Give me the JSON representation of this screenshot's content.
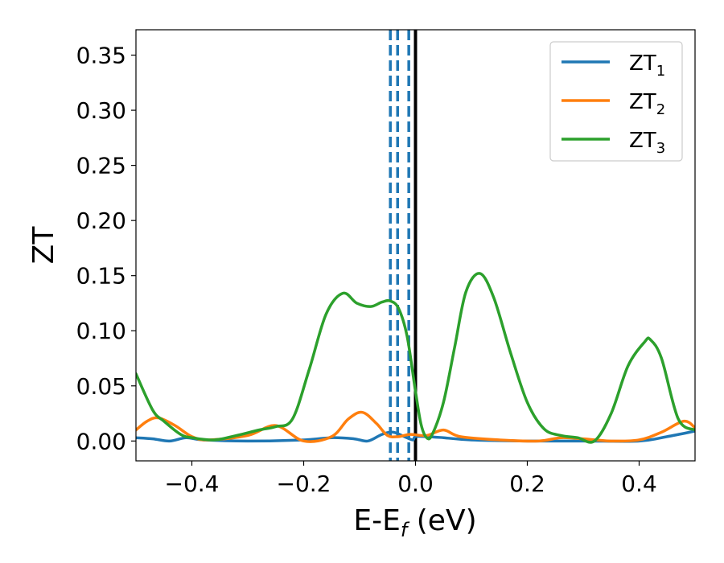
{
  "chart_data": {
    "type": "line",
    "xlabel": "E-E",
    "xlabel_sub": "f",
    "xlabel_unit": " (eV)",
    "ylabel": "ZT",
    "xlim": [
      -0.5,
      0.5
    ],
    "ylim": [
      -0.018,
      0.373
    ],
    "xticks": [
      -0.4,
      -0.2,
      0.0,
      0.2,
      0.4
    ],
    "xtick_labels": [
      "−0.4",
      "−0.2",
      "0.0",
      "0.2",
      "0.4"
    ],
    "yticks": [
      0.0,
      0.05,
      0.1,
      0.15,
      0.2,
      0.25,
      0.3,
      0.35
    ],
    "ytick_labels": [
      "0.00",
      "0.05",
      "0.10",
      "0.15",
      "0.20",
      "0.25",
      "0.30",
      "0.35"
    ],
    "grid": false,
    "legend_position": "top-right",
    "vlines": [
      {
        "x": 0.0,
        "color": "#000000",
        "style": "solid"
      },
      {
        "x": -0.045,
        "color": "#1f77b4",
        "style": "dashed"
      },
      {
        "x": -0.032,
        "color": "#1f77b4",
        "style": "dashed"
      },
      {
        "x": -0.012,
        "color": "#1f77b4",
        "style": "dashed"
      }
    ],
    "series": [
      {
        "name": "ZT",
        "name_sub": "1",
        "color": "#1f77b4",
        "x": [
          -0.5,
          -0.47,
          -0.44,
          -0.41,
          -0.38,
          -0.3,
          -0.2,
          -0.15,
          -0.11,
          -0.085,
          -0.06,
          -0.04,
          -0.02,
          -0.005,
          0.0,
          0.02,
          0.05,
          0.1,
          0.2,
          0.3,
          0.4,
          0.45,
          0.5
        ],
        "y": [
          0.003,
          0.002,
          0.0,
          0.003,
          0.001,
          0.0,
          0.001,
          0.003,
          0.002,
          0.0,
          0.006,
          0.008,
          0.004,
          0.001,
          0.004,
          0.004,
          0.003,
          0.001,
          0.0,
          0.0,
          0.0,
          0.004,
          0.009
        ]
      },
      {
        "name": "ZT",
        "name_sub": "2",
        "color": "#ff7f0e",
        "x": [
          -0.5,
          -0.48,
          -0.46,
          -0.43,
          -0.4,
          -0.37,
          -0.3,
          -0.25,
          -0.2,
          -0.15,
          -0.12,
          -0.095,
          -0.07,
          -0.05,
          -0.03,
          -0.01,
          0.02,
          0.05,
          0.08,
          0.15,
          0.22,
          0.26,
          0.3,
          0.35,
          0.4,
          0.44,
          0.48,
          0.5
        ],
        "y": [
          0.01,
          0.018,
          0.021,
          0.014,
          0.004,
          0.001,
          0.005,
          0.014,
          0.0,
          0.004,
          0.02,
          0.026,
          0.016,
          0.005,
          0.004,
          0.006,
          0.005,
          0.01,
          0.004,
          0.001,
          0.0,
          0.003,
          0.002,
          0.0,
          0.001,
          0.008,
          0.018,
          0.012
        ]
      },
      {
        "name": "ZT",
        "name_sub": "3",
        "color": "#2ca02c",
        "x": [
          -0.5,
          -0.47,
          -0.45,
          -0.42,
          -0.4,
          -0.36,
          -0.32,
          -0.28,
          -0.25,
          -0.22,
          -0.19,
          -0.16,
          -0.13,
          -0.105,
          -0.08,
          -0.06,
          -0.045,
          -0.03,
          -0.015,
          0.0,
          0.01,
          0.02,
          0.03,
          0.05,
          0.07,
          0.09,
          0.115,
          0.14,
          0.17,
          0.2,
          0.23,
          0.26,
          0.29,
          0.32,
          0.35,
          0.38,
          0.41,
          0.42,
          0.44,
          0.47,
          0.5
        ],
        "y": [
          0.061,
          0.028,
          0.018,
          0.006,
          0.003,
          0.001,
          0.005,
          0.01,
          0.013,
          0.02,
          0.065,
          0.115,
          0.134,
          0.125,
          0.122,
          0.126,
          0.127,
          0.12,
          0.095,
          0.045,
          0.015,
          0.003,
          0.006,
          0.035,
          0.085,
          0.135,
          0.152,
          0.13,
          0.08,
          0.035,
          0.011,
          0.005,
          0.003,
          0.0,
          0.025,
          0.068,
          0.09,
          0.092,
          0.075,
          0.02,
          0.01
        ]
      }
    ]
  }
}
